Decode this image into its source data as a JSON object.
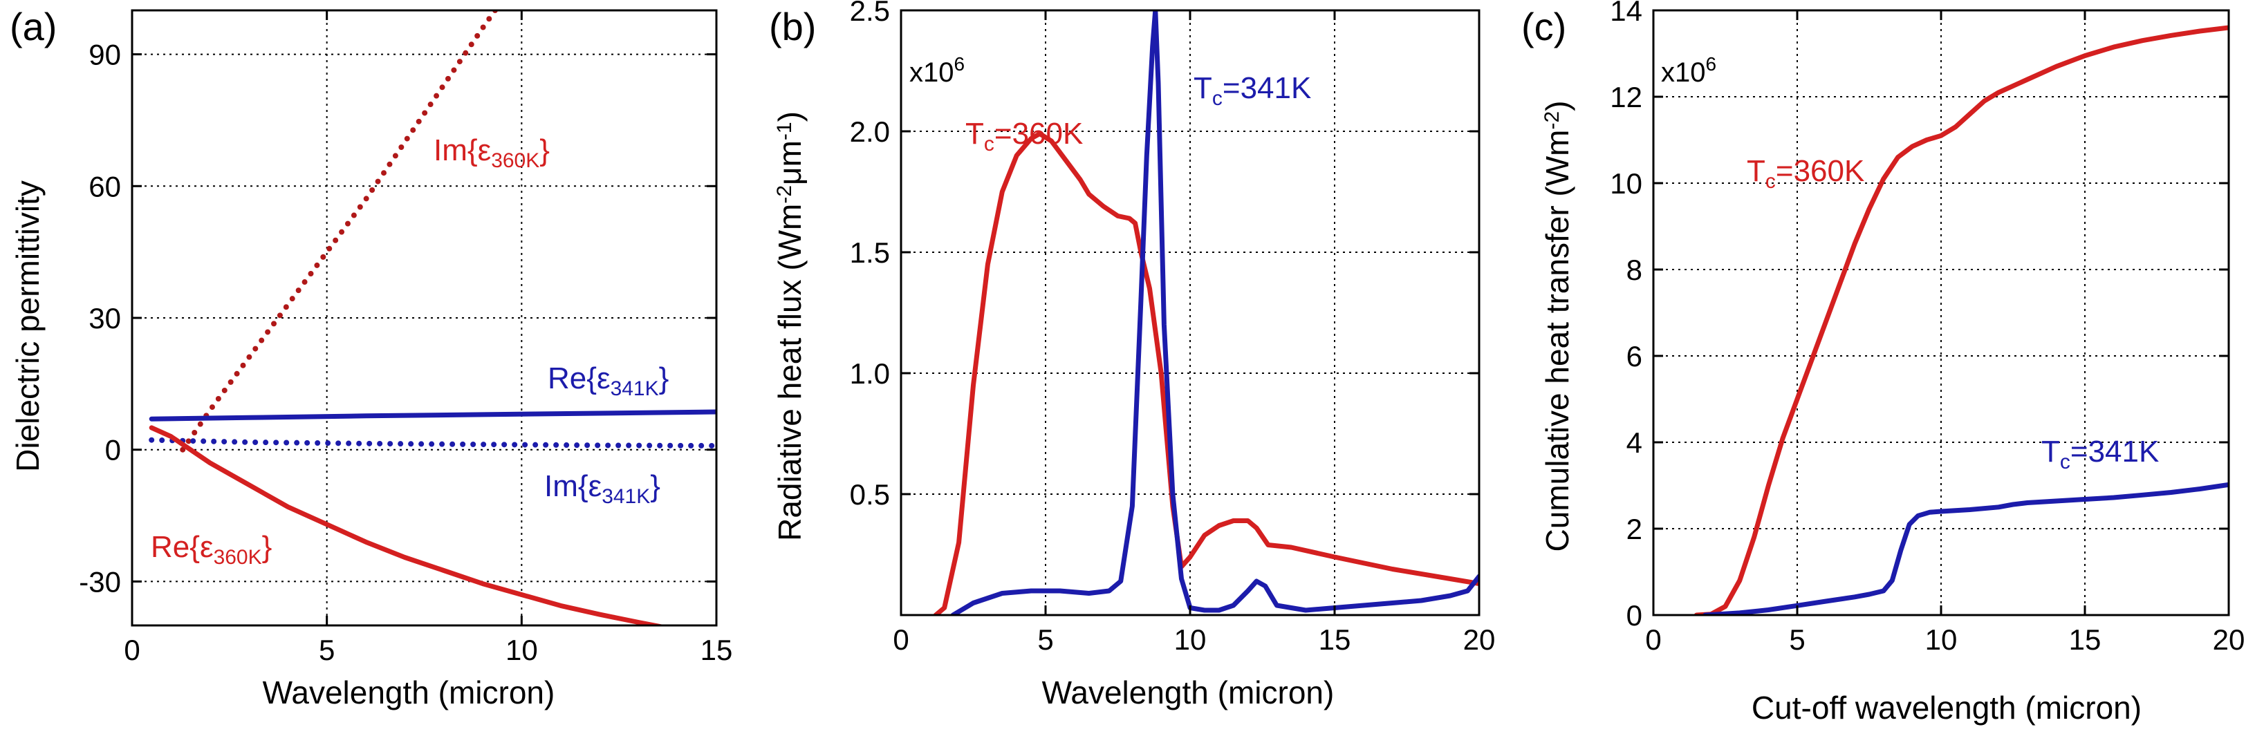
{
  "chart_data": [
    {
      "panel": "(a)",
      "type": "line",
      "title": "",
      "xlabel": "Wavelength (micron)",
      "ylabel": "Dielectric permittivity",
      "xlim": [
        0,
        15
      ],
      "ylim": [
        -40,
        100
      ],
      "xticks": [
        0,
        5,
        10,
        15
      ],
      "xtick_labels": [
        "0",
        "5",
        "10",
        "15"
      ],
      "yticks": [
        -30,
        0,
        30,
        60,
        90
      ],
      "ytick_labels": [
        "-30",
        "0",
        "30",
        "60",
        "90"
      ],
      "grid": true,
      "colors": {
        "hot": "#d42020",
        "cold": "#1c1cab"
      },
      "series": [
        {
          "name": "Im{ε360K}",
          "color": "#b01818",
          "style": "dotted",
          "x": [
            1.3,
            2,
            3,
            4,
            5,
            6,
            7,
            8,
            9,
            9.4
          ],
          "y": [
            0,
            9,
            21,
            33,
            45,
            57,
            70,
            83,
            96,
            101
          ]
        },
        {
          "name": "Re{ε341K}",
          "color": "#1c1cab",
          "style": "solid",
          "x": [
            0.5,
            3,
            6,
            9,
            12,
            15
          ],
          "y": [
            7,
            7.3,
            7.7,
            8.0,
            8.3,
            8.6
          ]
        },
        {
          "name": "Im{ε341K}",
          "color": "#1c1cab",
          "style": "dotted",
          "x": [
            0.5,
            3,
            6,
            9,
            12,
            15
          ],
          "y": [
            2.2,
            1.7,
            1.4,
            1.2,
            1.0,
            0.9
          ]
        },
        {
          "name": "Re{ε360K}",
          "color": "#d42020",
          "style": "solid",
          "x": [
            0.5,
            1,
            2,
            3,
            4,
            5,
            6,
            7,
            8,
            9,
            10,
            11,
            12,
            13,
            13.7
          ],
          "y": [
            5,
            3,
            -3,
            -8,
            -13,
            -17,
            -21,
            -24.5,
            -27.5,
            -30.5,
            -33,
            -35.5,
            -37.5,
            -39.3,
            -40.5
          ]
        }
      ],
      "annotations": [
        {
          "main": "Im{ε",
          "sub": "360K",
          "close": "}",
          "color": "#d42020"
        },
        {
          "main": "Re{ε",
          "sub": "341K",
          "close": "}",
          "color": "#1c1cab"
        },
        {
          "main": "Im{ε",
          "sub": "341K",
          "close": "}",
          "color": "#1c1cab"
        },
        {
          "main": "Re{ε",
          "sub": "360K",
          "close": "}",
          "color": "#d42020"
        }
      ]
    },
    {
      "panel": "(b)",
      "type": "line",
      "title": "",
      "xlabel": "Wavelength (micron)",
      "ylabel": "Radiative heat flux (Wm-2μm-1)",
      "ylabel_parts": {
        "pre": "Radiative heat flux (Wm",
        "exp1": "-2",
        "mid": "μm",
        "exp2": "-1",
        "post": ")"
      },
      "scale_label": {
        "base": "x10",
        "exp": "6"
      },
      "xlim": [
        0,
        20
      ],
      "ylim": [
        0,
        2.5
      ],
      "xticks": [
        0,
        5,
        10,
        15,
        20
      ],
      "xtick_labels": [
        "0",
        "5",
        "10",
        "15",
        "20"
      ],
      "yticks": [
        0.5,
        1.0,
        1.5,
        2.0,
        2.5
      ],
      "ytick_labels": [
        "0.5",
        "1.0",
        "1.5",
        "2.0",
        "2.5"
      ],
      "grid": true,
      "series": [
        {
          "name": "Tc=360K",
          "color": "#d42020",
          "style": "solid",
          "x": [
            1.2,
            1.5,
            2,
            2.5,
            3,
            3.5,
            4,
            4.5,
            4.8,
            5.2,
            5.7,
            6.2,
            6.5,
            7,
            7.5,
            7.9,
            8.1,
            8.3,
            8.6,
            9,
            9.4,
            9.7,
            10,
            10.5,
            11,
            11.5,
            12,
            12.3,
            12.7,
            13.5,
            15,
            17,
            19,
            20
          ],
          "y": [
            0,
            0.03,
            0.3,
            0.95,
            1.45,
            1.75,
            1.9,
            1.97,
            1.99,
            1.96,
            1.88,
            1.8,
            1.74,
            1.69,
            1.65,
            1.64,
            1.62,
            1.5,
            1.35,
            1.0,
            0.45,
            0.2,
            0.24,
            0.33,
            0.37,
            0.39,
            0.39,
            0.36,
            0.29,
            0.28,
            0.24,
            0.19,
            0.15,
            0.13
          ]
        },
        {
          "name": "Tc=341K",
          "color": "#1c1cab",
          "style": "solid",
          "x": [
            1.8,
            2.5,
            3.5,
            4.5,
            5.5,
            6.5,
            7.2,
            7.6,
            8.0,
            8.3,
            8.5,
            8.7,
            8.8,
            8.9,
            9.1,
            9.4,
            9.7,
            10,
            10.5,
            11,
            11.5,
            12,
            12.3,
            12.6,
            13,
            14,
            15,
            16,
            17,
            18,
            19,
            19.6,
            20
          ],
          "y": [
            0,
            0.05,
            0.09,
            0.1,
            0.1,
            0.09,
            0.1,
            0.14,
            0.45,
            1.3,
            1.9,
            2.35,
            2.5,
            2.2,
            1.2,
            0.5,
            0.15,
            0.03,
            0.02,
            0.02,
            0.04,
            0.1,
            0.14,
            0.12,
            0.04,
            0.02,
            0.03,
            0.04,
            0.05,
            0.06,
            0.08,
            0.1,
            0.16
          ]
        }
      ],
      "annotations": [
        {
          "main": "T",
          "sub": "c",
          "rest": "=360K",
          "color": "#d42020"
        },
        {
          "main": "T",
          "sub": "c",
          "rest": "=341K",
          "color": "#1c1cab"
        }
      ]
    },
    {
      "panel": "(c)",
      "type": "line",
      "title": "",
      "xlabel": "Cut-off wavelength (micron)",
      "ylabel": "Cumulative heat transfer (Wm-2)",
      "ylabel_parts": {
        "pre": "Cumulative heat transfer (Wm",
        "exp1": "-2",
        "post": ")"
      },
      "scale_label": {
        "base": "x10",
        "exp": "6"
      },
      "xlim": [
        0,
        20
      ],
      "ylim": [
        0,
        14
      ],
      "xticks": [
        0,
        5,
        10,
        15,
        20
      ],
      "xtick_labels": [
        "0",
        "5",
        "10",
        "15",
        "20"
      ],
      "yticks": [
        0,
        2,
        4,
        6,
        8,
        10,
        12,
        14
      ],
      "ytick_labels": [
        "0",
        "2",
        "4",
        "6",
        "8",
        "10",
        "12",
        "14"
      ],
      "grid": true,
      "series": [
        {
          "name": "Tc=360K",
          "color": "#d42020",
          "style": "solid",
          "x": [
            1.5,
            2,
            2.5,
            3,
            3.5,
            4,
            4.5,
            5,
            5.5,
            6,
            6.5,
            7,
            7.5,
            8,
            8.5,
            9,
            9.5,
            10,
            10.5,
            11,
            11.5,
            12,
            13,
            14,
            15,
            16,
            17,
            18,
            19,
            20
          ],
          "y": [
            0,
            0.02,
            0.2,
            0.8,
            1.8,
            3.0,
            4.1,
            5.0,
            5.9,
            6.8,
            7.7,
            8.6,
            9.4,
            10.1,
            10.6,
            10.85,
            11.0,
            11.1,
            11.3,
            11.6,
            11.9,
            12.1,
            12.4,
            12.7,
            12.95,
            13.15,
            13.3,
            13.42,
            13.52,
            13.6
          ]
        },
        {
          "name": "Tc=341K",
          "color": "#1c1cab",
          "style": "solid",
          "x": [
            1.8,
            3,
            4,
            5,
            6,
            7,
            7.5,
            8,
            8.3,
            8.6,
            8.9,
            9.2,
            9.6,
            10,
            11,
            12,
            12.5,
            13,
            14,
            15,
            16,
            17,
            18,
            19,
            20
          ],
          "y": [
            0,
            0.05,
            0.12,
            0.22,
            0.32,
            0.42,
            0.48,
            0.56,
            0.8,
            1.5,
            2.1,
            2.3,
            2.38,
            2.4,
            2.44,
            2.5,
            2.56,
            2.6,
            2.64,
            2.68,
            2.72,
            2.78,
            2.84,
            2.92,
            3.02
          ]
        }
      ],
      "annotations": [
        {
          "main": "T",
          "sub": "c",
          "rest": "=360K",
          "color": "#d42020"
        },
        {
          "main": "T",
          "sub": "c",
          "rest": "=341K",
          "color": "#1c1cab"
        }
      ]
    }
  ]
}
